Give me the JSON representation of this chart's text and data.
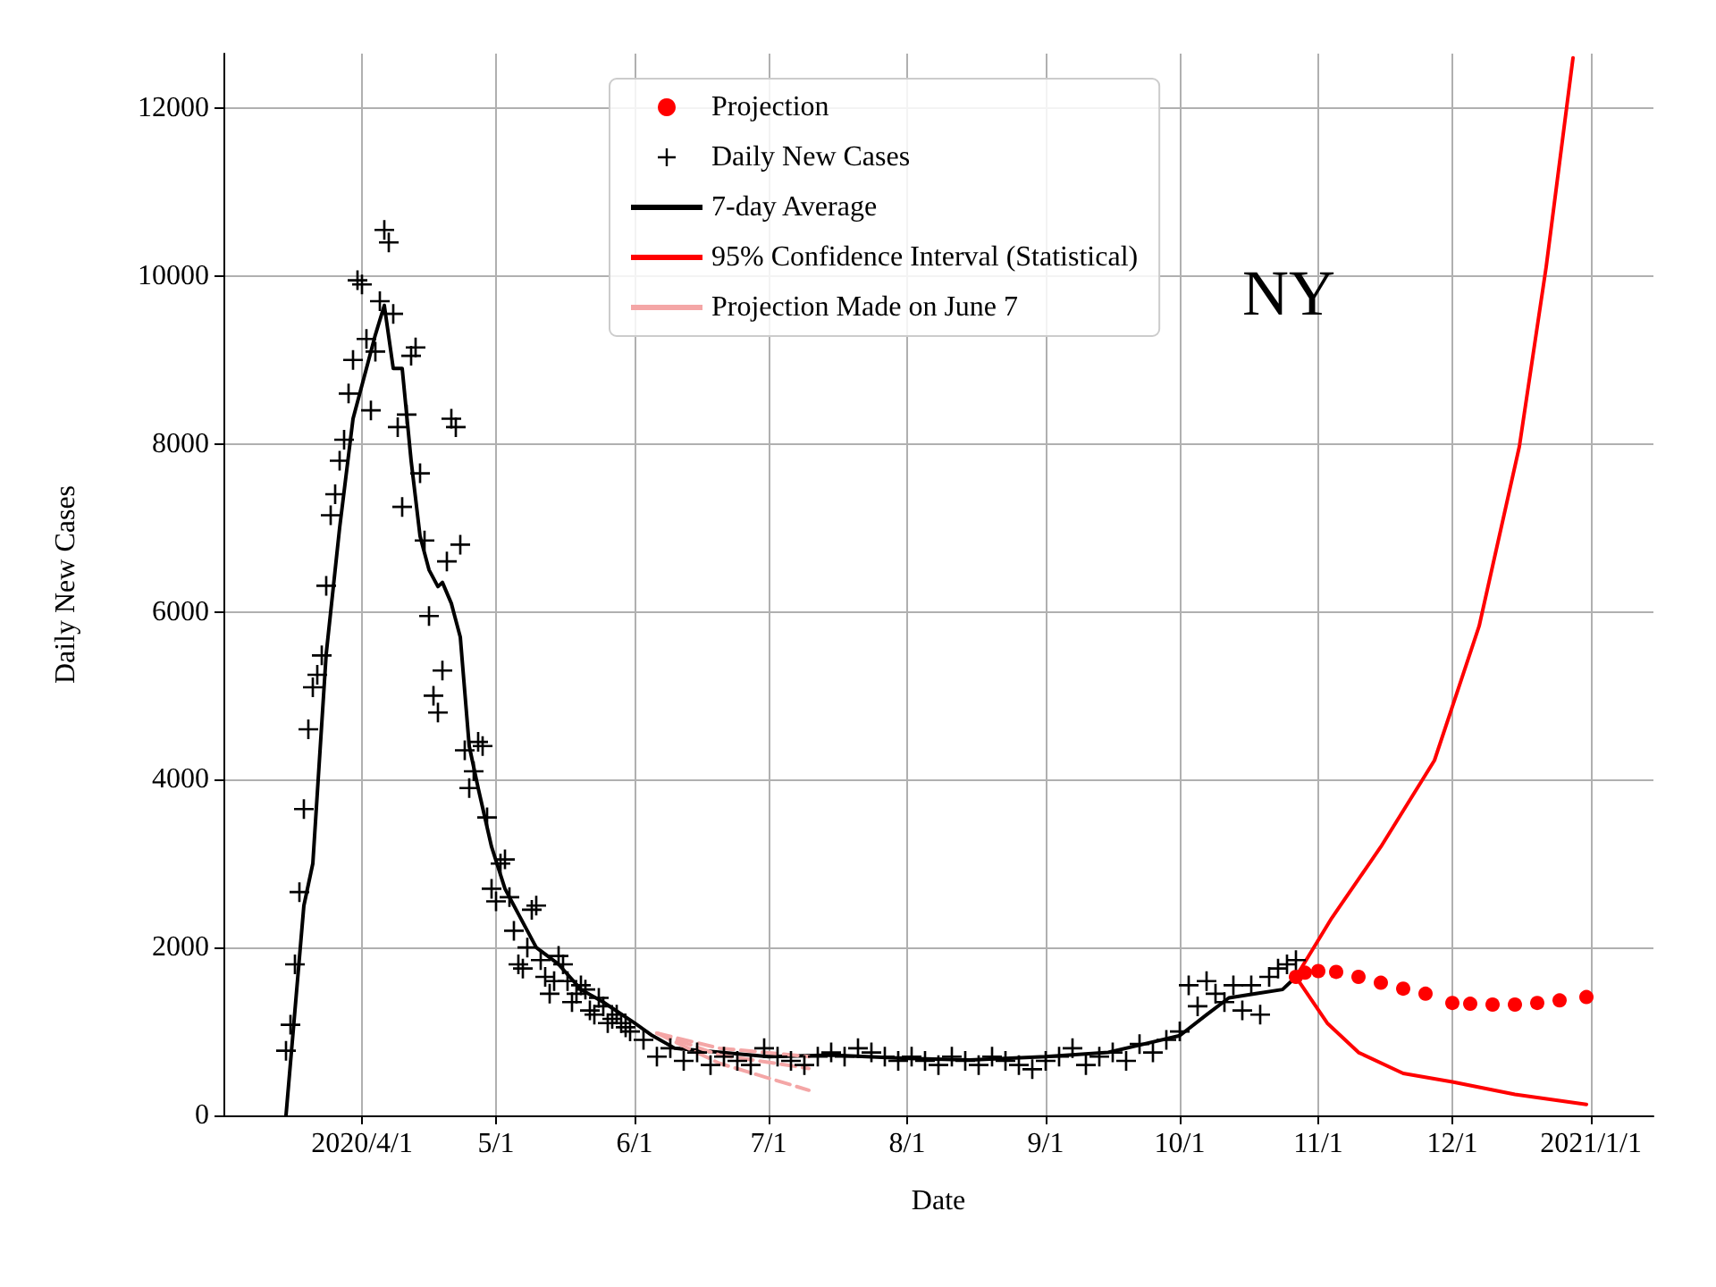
{
  "chart_data": {
    "type": "scatter",
    "xlabel": "Date",
    "ylabel": "Daily New Cases",
    "annotations": [
      "NY"
    ],
    "xlim": [
      "2020-03-01",
      "2021-01-15"
    ],
    "xticks": [
      {
        "value": "2020-04-01",
        "label": "2020/4/1"
      },
      {
        "value": "2020-05-01",
        "label": "5/1"
      },
      {
        "value": "2020-06-01",
        "label": "6/1"
      },
      {
        "value": "2020-07-01",
        "label": "7/1"
      },
      {
        "value": "2020-08-01",
        "label": "8/1"
      },
      {
        "value": "2020-09-01",
        "label": "9/1"
      },
      {
        "value": "2020-10-01",
        "label": "10/1"
      },
      {
        "value": "2020-11-01",
        "label": "11/1"
      },
      {
        "value": "2020-12-01",
        "label": "12/1"
      },
      {
        "value": "2021-01-01",
        "label": "2021/1/1"
      }
    ],
    "ylim": [
      0,
      12650
    ],
    "yticks": [
      0,
      2000,
      4000,
      6000,
      8000,
      10000,
      12000
    ],
    "grid": true,
    "legend": "top",
    "series": [
      {
        "name": "Projection",
        "marker": "circle",
        "color": "#ff0000",
        "x": [
          "2020-10-27",
          "2020-10-29",
          "2020-11-01",
          "2020-11-05",
          "2020-11-10",
          "2020-11-15",
          "2020-11-20",
          "2020-11-25",
          "2020-12-01",
          "2020-12-05",
          "2020-12-10",
          "2020-12-15",
          "2020-12-20",
          "2020-12-25",
          "2020-12-31"
        ],
        "values": [
          1650,
          1700,
          1720,
          1710,
          1650,
          1580,
          1510,
          1450,
          1340,
          1330,
          1320,
          1320,
          1340,
          1370,
          1410
        ]
      },
      {
        "name": "Daily New Cases",
        "marker": "cross",
        "color": "#000000",
        "x": [
          "2020-03-15",
          "2020-03-16",
          "2020-03-17",
          "2020-03-18",
          "2020-03-19",
          "2020-03-20",
          "2020-03-21",
          "2020-03-22",
          "2020-03-23",
          "2020-03-24",
          "2020-03-25",
          "2020-03-26",
          "2020-03-27",
          "2020-03-28",
          "2020-03-29",
          "2020-03-30",
          "2020-03-31",
          "2020-04-01",
          "2020-04-02",
          "2020-04-03",
          "2020-04-04",
          "2020-04-05",
          "2020-04-06",
          "2020-04-07",
          "2020-04-08",
          "2020-04-09",
          "2020-04-10",
          "2020-04-11",
          "2020-04-12",
          "2020-04-13",
          "2020-04-14",
          "2020-04-15",
          "2020-04-16",
          "2020-04-17",
          "2020-04-18",
          "2020-04-19",
          "2020-04-20",
          "2020-04-21",
          "2020-04-22",
          "2020-04-23",
          "2020-04-24",
          "2020-04-25",
          "2020-04-26",
          "2020-04-27",
          "2020-04-28",
          "2020-04-29",
          "2020-04-30",
          "2020-05-01",
          "2020-05-02",
          "2020-05-03",
          "2020-05-04",
          "2020-05-05",
          "2020-05-06",
          "2020-05-07",
          "2020-05-08",
          "2020-05-09",
          "2020-05-10",
          "2020-05-11",
          "2020-05-12",
          "2020-05-13",
          "2020-05-14",
          "2020-05-15",
          "2020-05-16",
          "2020-05-17",
          "2020-05-18",
          "2020-05-19",
          "2020-05-20",
          "2020-05-21",
          "2020-05-22",
          "2020-05-23",
          "2020-05-24",
          "2020-05-25",
          "2020-05-26",
          "2020-05-27",
          "2020-05-28",
          "2020-05-29",
          "2020-05-30",
          "2020-05-31",
          "2020-06-03",
          "2020-06-06",
          "2020-06-09",
          "2020-06-12",
          "2020-06-15",
          "2020-06-18",
          "2020-06-21",
          "2020-06-24",
          "2020-06-27",
          "2020-06-30",
          "2020-07-03",
          "2020-07-06",
          "2020-07-09",
          "2020-07-12",
          "2020-07-15",
          "2020-07-18",
          "2020-07-21",
          "2020-07-24",
          "2020-07-27",
          "2020-07-30",
          "2020-08-02",
          "2020-08-05",
          "2020-08-08",
          "2020-08-11",
          "2020-08-14",
          "2020-08-17",
          "2020-08-20",
          "2020-08-23",
          "2020-08-26",
          "2020-08-29",
          "2020-09-01",
          "2020-09-04",
          "2020-09-07",
          "2020-09-10",
          "2020-09-13",
          "2020-09-16",
          "2020-09-19",
          "2020-09-22",
          "2020-09-25",
          "2020-09-28",
          "2020-10-01",
          "2020-10-03",
          "2020-10-05",
          "2020-10-07",
          "2020-10-09",
          "2020-10-11",
          "2020-10-13",
          "2020-10-15",
          "2020-10-17",
          "2020-10-19",
          "2020-10-21",
          "2020-10-23",
          "2020-10-25",
          "2020-10-27"
        ],
        "values": [
          770,
          1080,
          1800,
          2660,
          3650,
          4600,
          5100,
          5250,
          5480,
          6310,
          7150,
          7400,
          7800,
          8050,
          8600,
          9000,
          9950,
          9900,
          9250,
          8400,
          9100,
          9700,
          10550,
          10400,
          9550,
          8200,
          7250,
          8350,
          9050,
          9150,
          7650,
          6850,
          5950,
          5000,
          4800,
          5300,
          6600,
          8300,
          8200,
          6800,
          4350,
          3900,
          4100,
          4450,
          4400,
          3550,
          2700,
          2550,
          3000,
          3050,
          2600,
          2200,
          1800,
          1750,
          2000,
          2450,
          2500,
          1850,
          1650,
          1450,
          1600,
          1900,
          1800,
          1600,
          1350,
          1450,
          1550,
          1500,
          1250,
          1200,
          1400,
          1300,
          1100,
          1150,
          1200,
          1100,
          1050,
          1000,
          900,
          700,
          800,
          650,
          750,
          600,
          700,
          650,
          600,
          800,
          700,
          650,
          600,
          700,
          750,
          700,
          800,
          750,
          700,
          650,
          700,
          650,
          600,
          700,
          650,
          600,
          700,
          650,
          600,
          550,
          650,
          700,
          800,
          600,
          700,
          750,
          650,
          850,
          750,
          900,
          1000,
          1550,
          1300,
          1600,
          1450,
          1350,
          1550,
          1250,
          1550,
          1200,
          1650,
          1750,
          1800,
          1850
        ]
      },
      {
        "name": "7-day Average",
        "type": "line",
        "marker": "none",
        "line_style": "solid",
        "color": "#000000",
        "x": [
          "2020-03-15",
          "2020-03-19",
          "2020-03-21",
          "2020-03-24",
          "2020-03-27",
          "2020-03-30",
          "2020-04-02",
          "2020-04-04",
          "2020-04-06",
          "2020-04-08",
          "2020-04-10",
          "2020-04-12",
          "2020-04-14",
          "2020-04-16",
          "2020-04-18",
          "2020-04-19",
          "2020-04-21",
          "2020-04-23",
          "2020-04-25",
          "2020-04-27",
          "2020-04-30",
          "2020-05-03",
          "2020-05-06",
          "2020-05-10",
          "2020-05-15",
          "2020-05-20",
          "2020-05-25",
          "2020-06-01",
          "2020-06-05",
          "2020-06-10",
          "2020-07-01",
          "2020-07-15",
          "2020-08-01",
          "2020-08-15",
          "2020-09-01",
          "2020-09-15",
          "2020-10-01",
          "2020-10-07",
          "2020-10-12",
          "2020-10-18",
          "2020-10-24",
          "2020-10-27"
        ],
        "values": [
          0,
          2500,
          3000,
          5500,
          7000,
          8300,
          8900,
          9300,
          9650,
          8900,
          8900,
          7800,
          6900,
          6500,
          6300,
          6350,
          6100,
          5700,
          4400,
          3900,
          3200,
          2700,
          2400,
          2000,
          1800,
          1500,
          1350,
          1100,
          950,
          800,
          700,
          720,
          680,
          660,
          700,
          750,
          950,
          1200,
          1400,
          1450,
          1500,
          1650
        ]
      },
      {
        "name": "95% Confidence Interval (Statistical)",
        "type": "line",
        "marker": "none",
        "line_style": "solid",
        "color": "#ff0000",
        "x": [
          "2020-10-27",
          "2020-11-04",
          "2020-11-15",
          "2020-11-27",
          "2020-12-07",
          "2020-12-16",
          "2020-12-22",
          "2020-12-28"
        ],
        "values": [
          1650,
          2350,
          3200,
          4230,
          5830,
          7970,
          10110,
          12600
        ]
      },
      {
        "type": "line",
        "marker": "none",
        "line_style": "solid",
        "color": "#ff0000",
        "x": [
          "2020-10-27",
          "2020-11-03",
          "2020-11-10",
          "2020-11-20",
          "2020-12-01",
          "2020-12-15",
          "2020-12-31"
        ],
        "values": [
          1650,
          1100,
          750,
          500,
          400,
          250,
          130
        ]
      },
      {
        "name": "Projection Made on June 7",
        "type": "line",
        "marker": "none",
        "line_style": "dashed",
        "color": "#f4a6a6",
        "x": [
          "2020-06-06",
          "2020-06-20",
          "2020-07-10"
        ],
        "values": [
          980,
          800,
          700
        ]
      },
      {
        "type": "line",
        "marker": "none",
        "line_style": "dashed",
        "color": "#f4a6a6",
        "x": [
          "2020-06-06",
          "2020-06-20",
          "2020-07-10"
        ],
        "values": [
          980,
          720,
          560
        ]
      },
      {
        "type": "line",
        "marker": "none",
        "line_style": "dashed",
        "color": "#f4a6a6",
        "x": [
          "2020-06-06",
          "2020-06-20",
          "2020-07-10"
        ],
        "values": [
          980,
          620,
          300
        ]
      }
    ]
  }
}
